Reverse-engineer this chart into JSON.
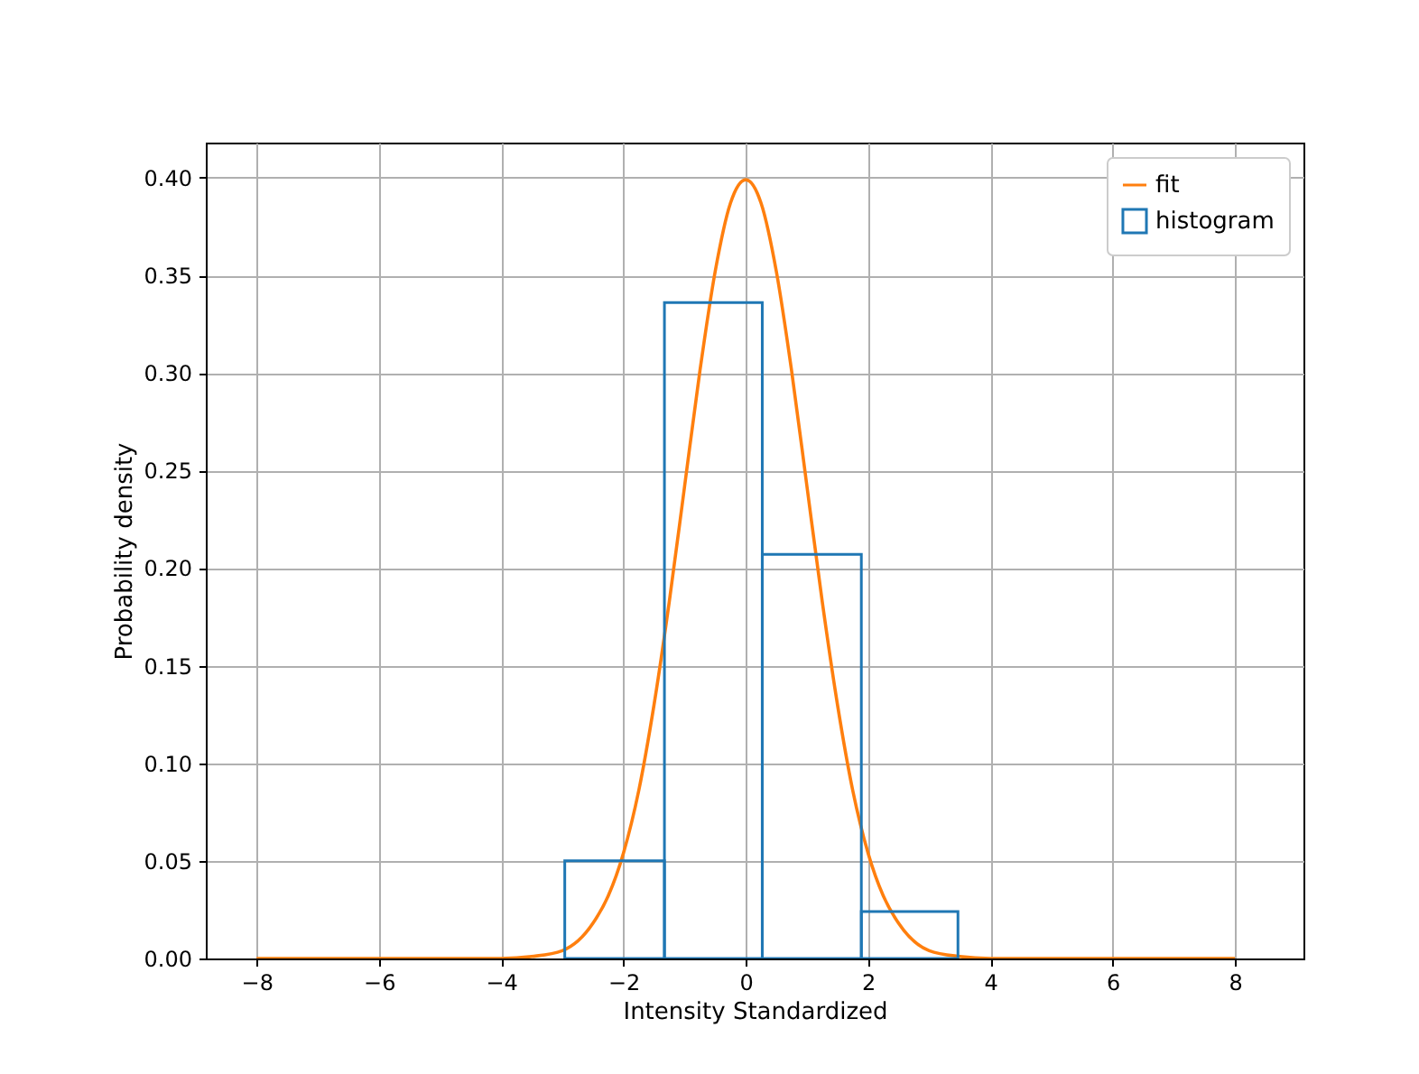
{
  "chart_data": {
    "type": "histogram",
    "xlabel": "Intensity Standardized",
    "ylabel": "Probability density",
    "xlim": [
      -8.83,
      9.12
    ],
    "ylim": [
      0,
      0.418
    ],
    "xticks": [
      -8,
      -6,
      -4,
      -2,
      0,
      2,
      4,
      6,
      8
    ],
    "yticks": [
      {
        "value": 0,
        "label": "0.00"
      },
      {
        "value": 0.05,
        "label": "0.05"
      },
      {
        "value": 0.1,
        "label": "0.10"
      },
      {
        "value": 0.15,
        "label": "0.15"
      },
      {
        "value": 0.2,
        "label": "0.20"
      },
      {
        "value": 0.25,
        "label": "0.25"
      },
      {
        "value": 0.3,
        "label": "0.30"
      },
      {
        "value": 0.35,
        "label": "0.35"
      },
      {
        "value": 0.4,
        "label": "0.40"
      }
    ],
    "grid": true,
    "legend": "top right",
    "series": [
      {
        "name": "fit",
        "type": "line",
        "color": "#ff7f0e",
        "x": [
          -8,
          -6,
          -4,
          -3.5,
          -3,
          -2.5,
          -2.25,
          -2,
          -1.75,
          -1.5,
          -1.25,
          -1,
          -0.75,
          -0.5,
          -0.25,
          0,
          0.25,
          0.5,
          0.75,
          1,
          1.25,
          1.5,
          1.75,
          2,
          2.25,
          2.5,
          3,
          3.5,
          4,
          6,
          8
        ],
        "values": [
          0,
          0,
          0,
          0.001,
          0.004,
          0.018,
          0.032,
          0.054,
          0.086,
          0.13,
          0.183,
          0.242,
          0.301,
          0.352,
          0.387,
          0.399,
          0.387,
          0.352,
          0.301,
          0.242,
          0.183,
          0.13,
          0.086,
          0.054,
          0.032,
          0.018,
          0.004,
          0.001,
          0,
          0,
          0
        ]
      },
      {
        "name": "histogram",
        "color": "#1f77b4",
        "bins": [
          -2.96,
          -1.33,
          0.27,
          1.89,
          3.47
        ],
        "values": [
          0.05,
          0.336,
          0.207,
          0.024
        ]
      }
    ]
  }
}
